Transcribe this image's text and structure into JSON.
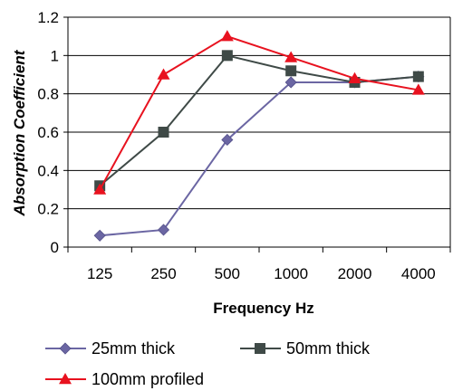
{
  "chart_data": {
    "type": "line",
    "categories": [
      "125",
      "250",
      "500",
      "1000",
      "2000",
      "4000"
    ],
    "xlabel": "Frequency Hz",
    "ylabel": "Absorption Coefficient",
    "ylim": [
      0,
      1.2
    ],
    "yticks": [
      "0",
      "0.2",
      "0.4",
      "0.6",
      "0.8",
      "1",
      "1.2"
    ],
    "grid": true,
    "legend_position": "bottom",
    "series": [
      {
        "name": "25mm thick",
        "values": [
          0.06,
          0.09,
          0.56,
          0.86,
          0.86,
          0.89
        ],
        "color": "#6b66a3",
        "marker": "diamond"
      },
      {
        "name": "50mm thick",
        "values": [
          0.32,
          0.6,
          1.0,
          0.92,
          0.86,
          0.89
        ],
        "color": "#3f4a47",
        "marker": "square"
      },
      {
        "name": "100mm profiled",
        "values": [
          0.3,
          0.9,
          1.1,
          0.99,
          0.88,
          0.82
        ],
        "color": "#e8121f",
        "marker": "triangle"
      }
    ]
  }
}
